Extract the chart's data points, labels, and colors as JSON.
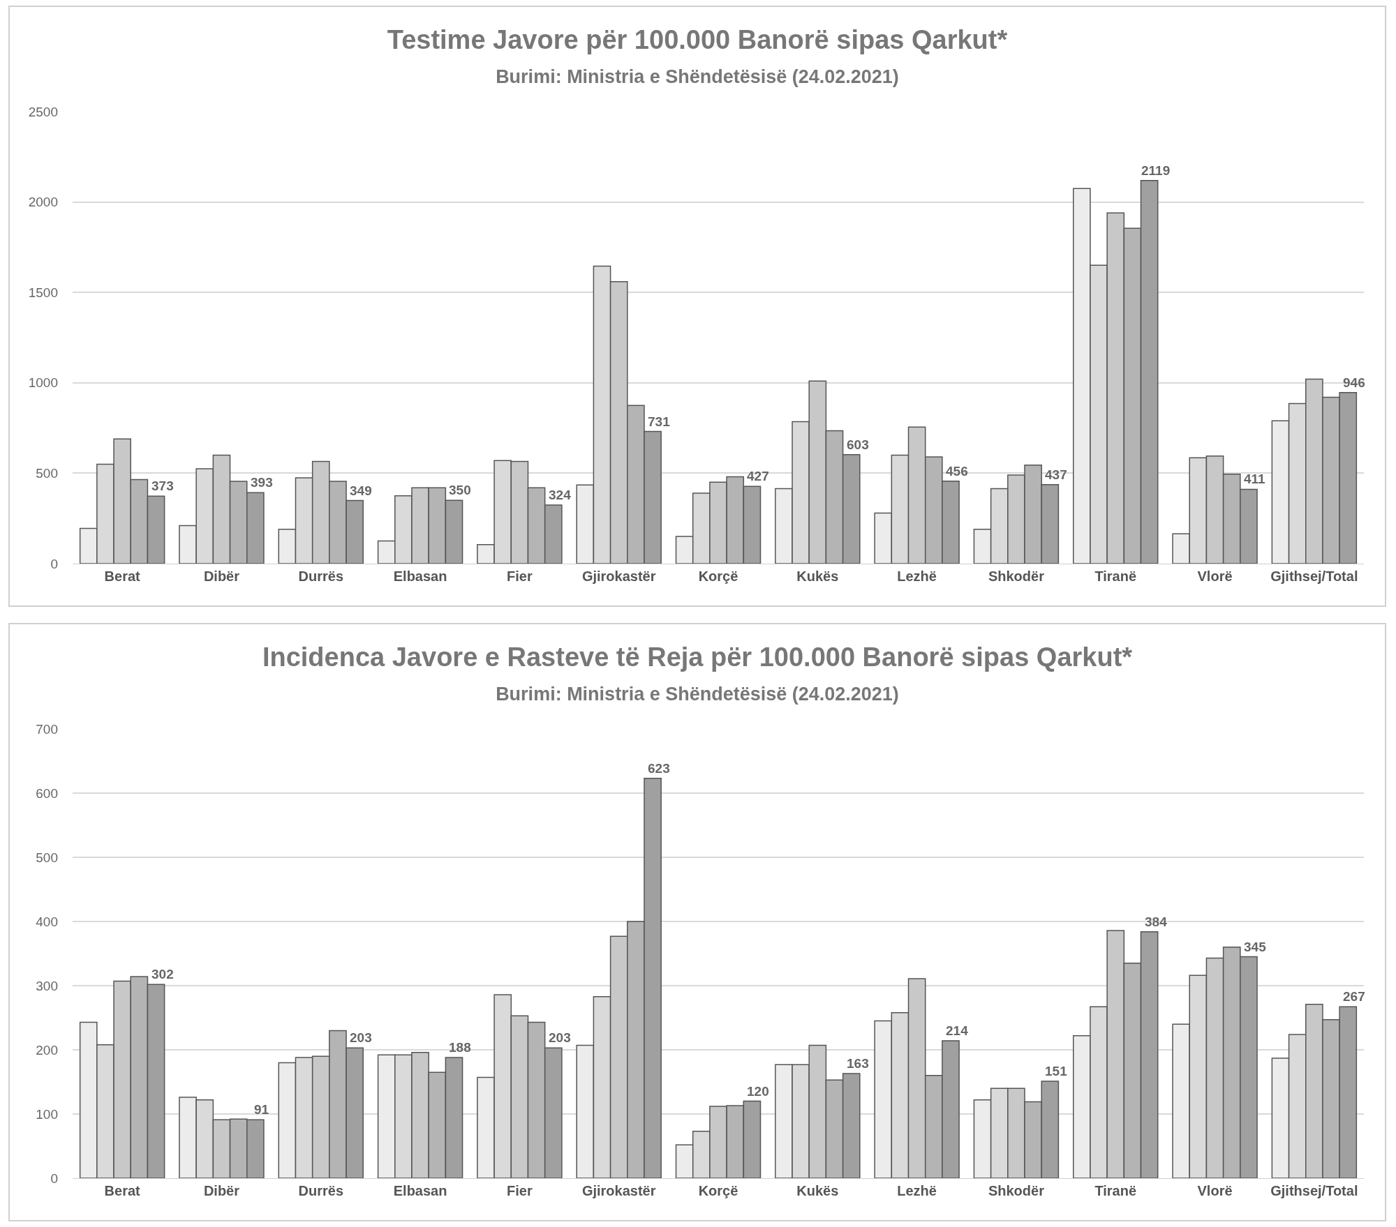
{
  "chart_data": [
    {
      "type": "bar",
      "title": "Testime Javore për 100.000 Banorë sipas Qarkut*",
      "subtitle": "Burimi: Ministria e Shëndetësisë (24.02.2021)",
      "categories": [
        "Berat",
        "Dibër",
        "Durrës",
        "Elbasan",
        "Fier",
        "Gjirokastër",
        "Korçë",
        "Kukës",
        "Lezhë",
        "Shkodër",
        "Tiranë",
        "Vlorë",
        "Gjithsej/Total"
      ],
      "series": [
        {
          "color": "#ececec",
          "values": [
            195,
            210,
            190,
            125,
            105,
            435,
            150,
            415,
            280,
            190,
            2075,
            165,
            790
          ]
        },
        {
          "color": "#dadada",
          "values": [
            550,
            525,
            475,
            375,
            570,
            1645,
            390,
            785,
            600,
            415,
            1650,
            585,
            885
          ]
        },
        {
          "color": "#c8c8c8",
          "values": [
            690,
            600,
            565,
            420,
            565,
            1560,
            450,
            1010,
            755,
            490,
            1940,
            595,
            1020
          ]
        },
        {
          "color": "#b4b4b4",
          "values": [
            465,
            455,
            455,
            420,
            420,
            875,
            480,
            735,
            590,
            545,
            1855,
            495,
            920
          ]
        },
        {
          "color": "#a0a0a0",
          "values": [
            373,
            393,
            349,
            350,
            324,
            731,
            427,
            603,
            456,
            437,
            2119,
            411,
            946
          ],
          "value_labels": [
            "373",
            "393",
            "349",
            "350",
            "324",
            "731",
            "427",
            "603",
            "456",
            "437",
            "2119",
            "411",
            "946"
          ]
        }
      ],
      "ylim": [
        0,
        2500
      ],
      "yticks": [
        0,
        500,
        1000,
        1500,
        2000,
        2500
      ],
      "grid": "y"
    },
    {
      "type": "bar",
      "title": "Incidenca Javore e Rasteve të Reja për 100.000 Banorë sipas Qarkut*",
      "subtitle": "Burimi: Ministria e Shëndetësisë (24.02.2021)",
      "categories": [
        "Berat",
        "Dibër",
        "Durrës",
        "Elbasan",
        "Fier",
        "Gjirokastër",
        "Korçë",
        "Kukës",
        "Lezhë",
        "Shkodër",
        "Tiranë",
        "Vlorë",
        "Gjithsej/Total"
      ],
      "series": [
        {
          "color": "#ececec",
          "values": [
            243,
            126,
            180,
            192,
            157,
            207,
            52,
            177,
            245,
            122,
            222,
            240,
            187
          ]
        },
        {
          "color": "#dadada",
          "values": [
            208,
            122,
            188,
            192,
            286,
            283,
            73,
            177,
            258,
            140,
            267,
            316,
            224
          ]
        },
        {
          "color": "#c8c8c8",
          "values": [
            307,
            91,
            190,
            196,
            253,
            377,
            112,
            207,
            311,
            140,
            386,
            343,
            271
          ]
        },
        {
          "color": "#b4b4b4",
          "values": [
            314,
            92,
            230,
            165,
            243,
            400,
            113,
            153,
            160,
            119,
            335,
            360,
            247
          ]
        },
        {
          "color": "#a0a0a0",
          "values": [
            302,
            91,
            203,
            188,
            203,
            623,
            120,
            163,
            214,
            151,
            384,
            345,
            267
          ],
          "value_labels": [
            "302",
            "91",
            "203",
            "188",
            "203",
            "623",
            "120",
            "163",
            "214",
            "151",
            "384",
            "345",
            "267"
          ]
        }
      ],
      "ylim": [
        0,
        700
      ],
      "yticks": [
        0,
        100,
        200,
        300,
        400,
        500,
        600,
        700
      ],
      "grid": "y"
    }
  ]
}
